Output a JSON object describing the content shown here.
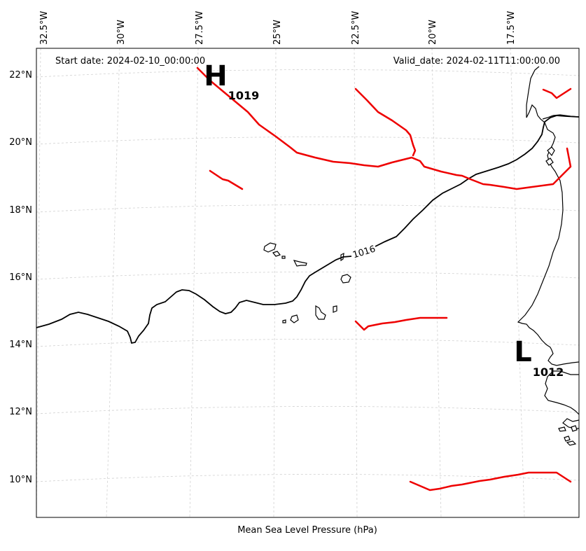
{
  "header": {
    "start_date": "Start date: 2024-02-10_00:00:00",
    "valid_date": "Valid_date: 2024-02-11T11:00:00.00"
  },
  "x_axis_label": "Mean Sea Level Pressure (hPa)",
  "lon_ticks": [
    "32.5°W",
    "30°W",
    "27.5°W",
    "25°W",
    "22.5°W",
    "20°W",
    "17.5°W"
  ],
  "lat_ticks": [
    "22°N",
    "20°N",
    "18°N",
    "16°N",
    "14°N",
    "12°N",
    "10°N"
  ],
  "centers": [
    {
      "type": "H",
      "value": "1019"
    },
    {
      "type": "L",
      "value": "1012"
    }
  ],
  "isobar_label": "1016",
  "colors": {
    "isobar": "#000000",
    "front_lines": "#ee0000",
    "gridlines": "#d0d0d0",
    "coastline": "#000000"
  }
}
